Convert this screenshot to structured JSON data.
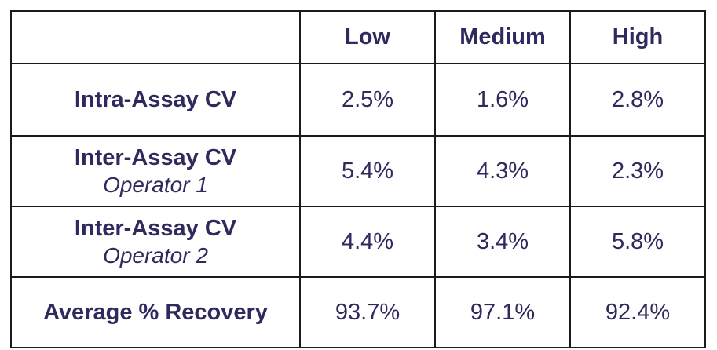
{
  "table": {
    "corner": "",
    "columns": [
      "Low",
      "Medium",
      "High"
    ],
    "rows": [
      {
        "label": "Intra-Assay CV",
        "sublabel": "",
        "values": [
          "2.5%",
          "1.6%",
          "2.8%"
        ]
      },
      {
        "label": "Inter-Assay CV",
        "sublabel": "Operator 1",
        "values": [
          "5.4%",
          "4.3%",
          "2.3%"
        ]
      },
      {
        "label": "Inter-Assay CV",
        "sublabel": "Operator 2",
        "values": [
          "4.4%",
          "3.4%",
          "5.8%"
        ]
      },
      {
        "label": "Average % Recovery",
        "sublabel": "",
        "values": [
          "93.7%",
          "97.1%",
          "92.4%"
        ]
      }
    ]
  },
  "colors": {
    "text": "#2e2a5e",
    "border": "#1a1a1a",
    "background": "#ffffff"
  }
}
